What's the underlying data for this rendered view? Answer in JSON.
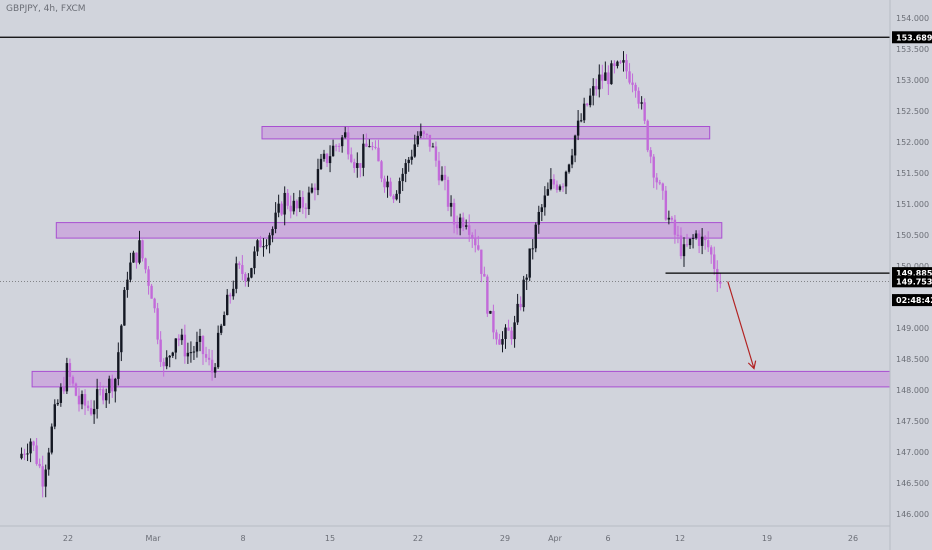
{
  "chart_title": "GBPJPY, 4h, FXCM",
  "colors": {
    "background": "#d1d4dc",
    "up_candle": "#131722",
    "down_candle": "#c26ad9",
    "zone_fill": "#c8a0dc",
    "zone_stroke": "#a94fd1",
    "axis_text": "#6b6e76",
    "arrow": "#b22222",
    "line": "#000000"
  },
  "chart_data": {
    "type": "candlestick",
    "symbol": "GBPJPY",
    "timeframe": "4h",
    "source": "FXCM",
    "y_axis": {
      "range": [
        145.8,
        154.2
      ],
      "ticks": [
        "154.000",
        "153.500",
        "153.000",
        "152.500",
        "152.000",
        "151.500",
        "151.000",
        "150.500",
        "150.000",
        "149.500",
        "149.000",
        "148.500",
        "148.000",
        "147.500",
        "147.000",
        "146.500",
        "146.000"
      ]
    },
    "x_axis": {
      "ticks": [
        "22",
        "Mar",
        "8",
        "15",
        "22",
        "29",
        "Apr",
        "6",
        "12",
        "19",
        "26"
      ]
    },
    "price_labels": [
      {
        "value": 153.689,
        "text": "153.689",
        "style": "line"
      },
      {
        "value": 149.885,
        "text": "149.885",
        "style": "line"
      },
      {
        "value": 149.753,
        "text": "149.753",
        "style": "current"
      },
      {
        "value": 149.45,
        "text": "02:48:42",
        "style": "countdown"
      }
    ],
    "horizontal_lines": [
      {
        "price": 153.689,
        "x_start_day": "Feb 15",
        "x_end": "axis"
      },
      {
        "price": 149.885,
        "x_start_day": "Apr 11",
        "x_end": "axis"
      }
    ],
    "current_price_line": 149.753,
    "zones": [
      {
        "from_day": "Mar 7",
        "to_day": "Apr 13",
        "low": 152.05,
        "high": 152.25
      },
      {
        "from_day": "Feb 18",
        "to_day": "Apr 14",
        "low": 150.45,
        "high": 150.7
      },
      {
        "from_day": "Feb 16",
        "to_day": "axis",
        "low": 148.05,
        "high": 148.3
      }
    ],
    "arrow": {
      "from_day": "Apr 14",
      "from_price": 149.75,
      "to_day": "Apr 16",
      "to_price": 148.25
    },
    "price_path": [
      {
        "date": "Feb 15",
        "close": 146.9
      },
      {
        "date": "Feb 16",
        "close": 147.2
      },
      {
        "date": "Feb 17",
        "close": 146.6
      },
      {
        "date": "Feb 18",
        "close": 147.6
      },
      {
        "date": "Feb 19",
        "close": 148.3
      },
      {
        "date": "Feb 20",
        "close": 147.8
      },
      {
        "date": "Feb 21",
        "close": 147.7
      },
      {
        "date": "Feb 22",
        "close": 148.0
      },
      {
        "date": "Feb 23",
        "close": 148.2
      },
      {
        "date": "Feb 24",
        "close": 149.9
      },
      {
        "date": "Feb 25",
        "close": 150.3
      },
      {
        "date": "Feb 26",
        "close": 149.6
      },
      {
        "date": "Feb 27",
        "close": 148.3
      },
      {
        "date": "Feb 28",
        "close": 148.9
      },
      {
        "date": "Mar 1",
        "close": 148.6
      },
      {
        "date": "Mar 2",
        "close": 148.7
      },
      {
        "date": "Mar 3",
        "close": 148.3
      },
      {
        "date": "Mar 4",
        "close": 149.2
      },
      {
        "date": "Mar 5",
        "close": 149.9
      },
      {
        "date": "Mar 6",
        "close": 149.9
      },
      {
        "date": "Mar 7",
        "close": 150.4
      },
      {
        "date": "Mar 8",
        "close": 150.6
      },
      {
        "date": "Mar 9",
        "close": 151.1
      },
      {
        "date": "Mar 10",
        "close": 150.9
      },
      {
        "date": "Mar 11",
        "close": 151.1
      },
      {
        "date": "Mar 12",
        "close": 151.6
      },
      {
        "date": "Mar 13",
        "close": 151.9
      },
      {
        "date": "Mar 14",
        "close": 152.1
      },
      {
        "date": "Mar 15",
        "close": 151.6
      },
      {
        "date": "Mar 16",
        "close": 152.0
      },
      {
        "date": "Mar 17",
        "close": 151.5
      },
      {
        "date": "Mar 18",
        "close": 151.2
      },
      {
        "date": "Mar 19",
        "close": 151.6
      },
      {
        "date": "Mar 20",
        "close": 152.1
      },
      {
        "date": "Mar 21",
        "close": 152.0
      },
      {
        "date": "Mar 22",
        "close": 151.4
      },
      {
        "date": "Mar 23",
        "close": 150.7
      },
      {
        "date": "Mar 24",
        "close": 150.8
      },
      {
        "date": "Mar 25",
        "close": 150.3
      },
      {
        "date": "Mar 26",
        "close": 149.1
      },
      {
        "date": "Mar 27",
        "close": 148.8
      },
      {
        "date": "Mar 28",
        "close": 149.0
      },
      {
        "date": "Mar 29",
        "close": 149.9
      },
      {
        "date": "Mar 30",
        "close": 150.8
      },
      {
        "date": "Mar 31",
        "close": 151.3
      },
      {
        "date": "Apr 1",
        "close": 151.4
      },
      {
        "date": "Apr 2",
        "close": 152.1
      },
      {
        "date": "Apr 3",
        "close": 152.6
      },
      {
        "date": "Apr 4",
        "close": 153.0
      },
      {
        "date": "Apr 5",
        "close": 153.1
      },
      {
        "date": "Apr 6",
        "close": 153.2
      },
      {
        "date": "Apr 7",
        "close": 153.0
      },
      {
        "date": "Apr 8",
        "close": 152.0
      },
      {
        "date": "Apr 9",
        "close": 151.2
      },
      {
        "date": "Apr 10",
        "close": 150.6
      },
      {
        "date": "Apr 11",
        "close": 150.2
      },
      {
        "date": "Apr 12",
        "close": 150.5
      },
      {
        "date": "Apr 13",
        "close": 150.3
      },
      {
        "date": "Apr 14",
        "close": 149.75
      }
    ]
  }
}
